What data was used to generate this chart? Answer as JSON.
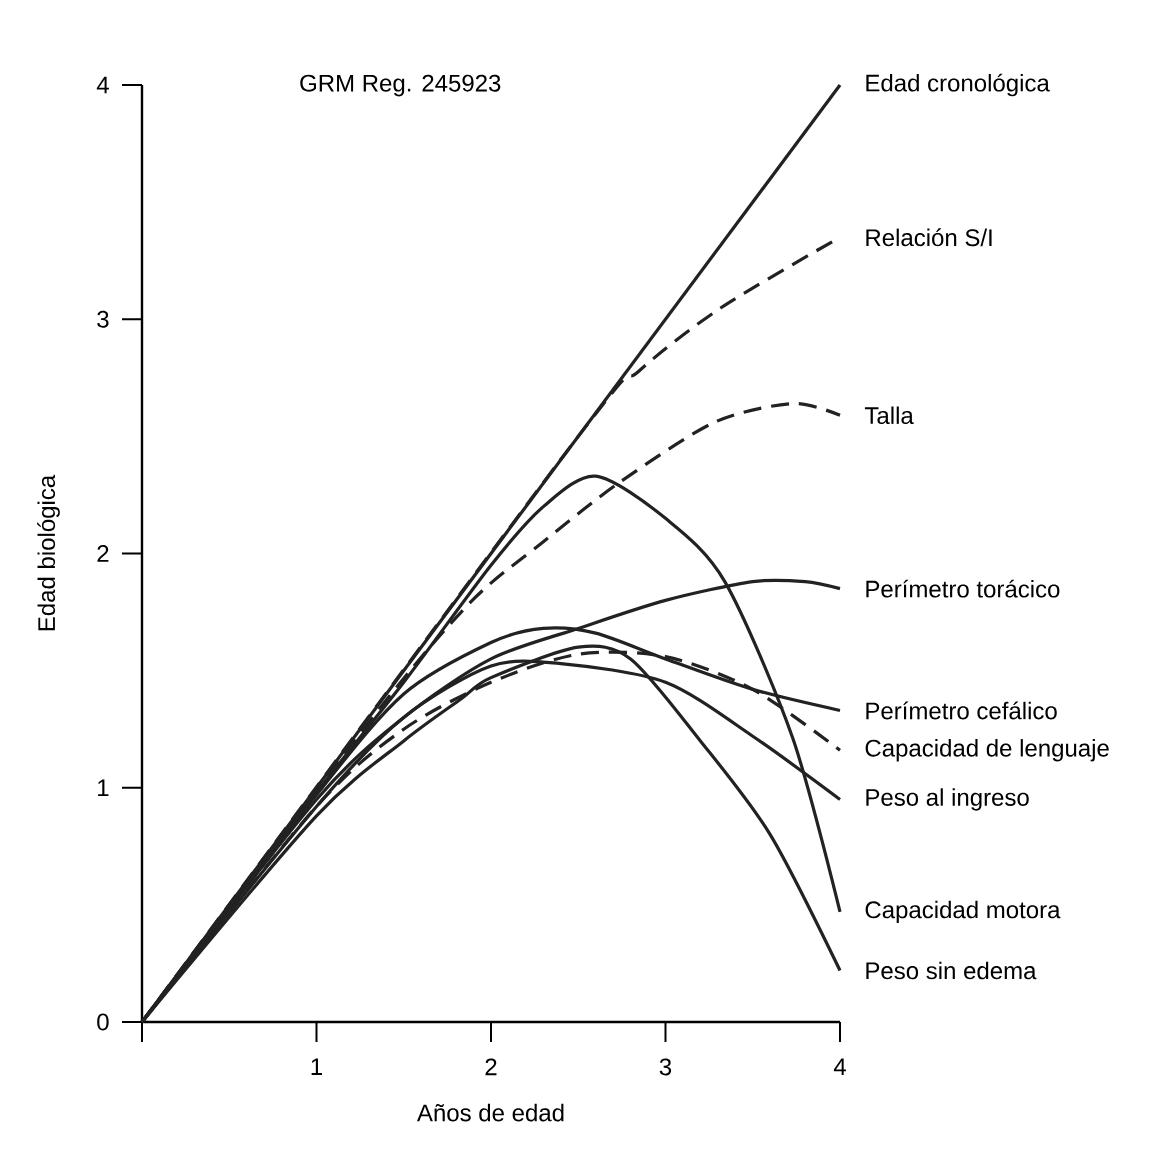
{
  "chart_data": {
    "type": "line",
    "xlabel": "Años de edad",
    "ylabel": "Edad biológica",
    "annotations": [
      "GRM Reg. 245923"
    ],
    "xlim": [
      0,
      4
    ],
    "ylim": [
      0,
      4
    ],
    "xticks": [
      {
        "value": 0,
        "label": null
      },
      1,
      2,
      3,
      4
    ],
    "yticks": [
      0,
      1,
      2,
      3,
      4
    ],
    "marker": "none",
    "series": [
      {
        "name": "Edad cronológica",
        "color": "#222222",
        "line_style": "solid",
        "x": [
          0,
          4
        ],
        "values": [
          0,
          4
        ]
      },
      {
        "name": "Relación S/I",
        "color": "#222222",
        "line_style": "dashed",
        "x": [
          0,
          2.5,
          2.85,
          3.32,
          4
        ],
        "values": [
          0,
          2.5,
          2.78,
          3.05,
          3.35
        ]
      },
      {
        "name": "Talla",
        "color": "#222222",
        "line_style": "dashed",
        "x": [
          0,
          1.3,
          1.88,
          2.3,
          2.73,
          3.28,
          3.73,
          4
        ],
        "values": [
          0,
          1.28,
          1.79,
          2.05,
          2.3,
          2.56,
          2.64,
          2.59
        ]
      },
      {
        "name": "Perímetro torácico",
        "color": "#222222",
        "line_style": "solid",
        "x": [
          0,
          1,
          1.5,
          2,
          2.5,
          3,
          3.5,
          3.8,
          4
        ],
        "values": [
          0,
          0.95,
          1.3,
          1.55,
          1.68,
          1.8,
          1.88,
          1.88,
          1.85
        ]
      },
      {
        "name": "Perímetro cefálico",
        "color": "#222222",
        "line_style": "solid",
        "x": [
          0,
          1,
          1.5,
          2,
          2.3,
          2.6,
          3,
          3.5,
          4
        ],
        "values": [
          0,
          0.97,
          1.4,
          1.62,
          1.68,
          1.66,
          1.55,
          1.42,
          1.33
        ]
      },
      {
        "name": "Capacidad de lenguaje",
        "color": "#222222",
        "line_style": "dashed",
        "x": [
          0,
          1,
          1.5,
          2,
          2.5,
          3,
          3.5,
          4
        ],
        "values": [
          0,
          0.92,
          1.25,
          1.45,
          1.57,
          1.56,
          1.42,
          1.16
        ]
      },
      {
        "name": "Peso al ingreso",
        "color": "#222222",
        "line_style": "solid",
        "x": [
          0,
          1,
          1.5,
          2,
          2.4,
          3,
          3.5,
          4
        ],
        "values": [
          0,
          0.92,
          1.3,
          1.52,
          1.53,
          1.45,
          1.22,
          0.95
        ]
      },
      {
        "name": "Capacidad motora",
        "color": "#222222",
        "line_style": "solid",
        "x": [
          0,
          1,
          1.5,
          2,
          2.3,
          2.6,
          3,
          3.34,
          3.73,
          4
        ],
        "values": [
          0,
          0.98,
          1.45,
          1.95,
          2.2,
          2.33,
          2.15,
          1.88,
          1.21,
          0.47
        ]
      },
      {
        "name": "Peso sin edema",
        "color": "#222222",
        "line_style": "solid",
        "x": [
          0,
          1,
          1.5,
          1.83,
          2,
          2.5,
          2.8,
          3.2,
          3.6,
          4
        ],
        "values": [
          0,
          0.88,
          1.2,
          1.38,
          1.47,
          1.6,
          1.55,
          1.2,
          0.8,
          0.22
        ]
      }
    ]
  }
}
